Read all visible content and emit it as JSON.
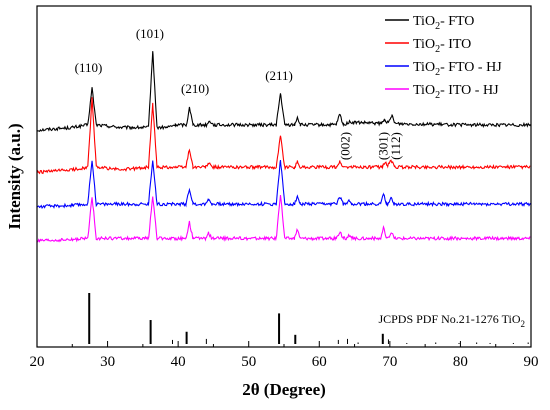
{
  "chart_data": {
    "type": "line",
    "xlabel": "2θ (Degree)",
    "ylabel": "Intensity (a.u.)",
    "xlim": [
      20,
      90
    ],
    "xticks": [
      20,
      30,
      40,
      50,
      60,
      70,
      80,
      90
    ],
    "yticks_shown": false,
    "grid": false,
    "legend_position": "top-right",
    "series": [
      {
        "name": "TiO2- FTO",
        "color": "#000000",
        "baseline": 0.56,
        "x": [
          20,
          25,
          27.2,
          27.8,
          28.4,
          32,
          35.8,
          36.4,
          37.0,
          38.4,
          39.6,
          41.2,
          41.6,
          42.1,
          44.0,
          44.5,
          45.0,
          50,
          53.9,
          54.5,
          55.1,
          56.5,
          56.9,
          57.3,
          61,
          62.4,
          62.9,
          63.4,
          64.2,
          68.8,
          69.3,
          69.8,
          70.3,
          70.8,
          80,
          89.9
        ],
        "y": [
          0.56,
          0.57,
          0.58,
          0.72,
          0.58,
          0.57,
          0.57,
          0.86,
          0.57,
          0.57,
          0.58,
          0.58,
          0.65,
          0.58,
          0.58,
          0.595,
          0.58,
          0.58,
          0.58,
          0.7,
          0.58,
          0.58,
          0.61,
          0.58,
          0.58,
          0.58,
          0.62,
          0.58,
          0.59,
          0.585,
          0.6,
          0.585,
          0.615,
          0.585,
          0.58,
          0.58
        ]
      },
      {
        "name": "TiO2- ITO",
        "color": "#ff0000",
        "baseline": 0.4,
        "x": [
          20,
          25,
          27.2,
          27.8,
          28.4,
          32,
          35.8,
          36.4,
          37.0,
          41.1,
          41.6,
          42.1,
          43.9,
          44.3,
          44.8,
          50,
          53.9,
          54.5,
          55.1,
          56.5,
          56.9,
          57.3,
          62.4,
          62.9,
          63.4,
          68.9,
          69.3,
          69.7,
          70.2,
          70.7,
          80,
          89.9
        ],
        "y": [
          0.4,
          0.41,
          0.42,
          0.68,
          0.42,
          0.41,
          0.42,
          0.66,
          0.42,
          0.42,
          0.49,
          0.42,
          0.42,
          0.435,
          0.42,
          0.42,
          0.42,
          0.54,
          0.42,
          0.42,
          0.44,
          0.42,
          0.42,
          0.44,
          0.42,
          0.42,
          0.44,
          0.425,
          0.445,
          0.42,
          0.42,
          0.42
        ]
      },
      {
        "name": "TiO2- FTO - HJ",
        "color": "#0000ff",
        "baseline": 0.27,
        "x": [
          20,
          25,
          27.2,
          27.8,
          28.4,
          32,
          35.8,
          36.4,
          37.0,
          41.1,
          41.6,
          42.1,
          43.9,
          44.3,
          44.8,
          50,
          53.9,
          54.5,
          55.1,
          56.5,
          56.9,
          57.3,
          62.4,
          62.9,
          63.4,
          63.8,
          64.2,
          64.6,
          68.7,
          69.1,
          69.5,
          69.8,
          70.2,
          70.6,
          80,
          89.9
        ],
        "y": [
          0.27,
          0.275,
          0.28,
          0.45,
          0.28,
          0.28,
          0.28,
          0.45,
          0.28,
          0.28,
          0.34,
          0.28,
          0.28,
          0.3,
          0.28,
          0.28,
          0.28,
          0.45,
          0.28,
          0.28,
          0.31,
          0.28,
          0.28,
          0.31,
          0.28,
          0.28,
          0.3,
          0.28,
          0.28,
          0.32,
          0.28,
          0.28,
          0.305,
          0.28,
          0.28,
          0.28
        ]
      },
      {
        "name": "TiO2- ITO - HJ",
        "color": "#ff00ff",
        "baseline": 0.14,
        "x": [
          20,
          25,
          27.2,
          27.8,
          28.4,
          32,
          35.8,
          36.4,
          37.0,
          41.1,
          41.6,
          42.1,
          43.9,
          44.3,
          44.8,
          50,
          53.9,
          54.5,
          55.1,
          56.5,
          56.9,
          57.3,
          62.4,
          62.9,
          63.4,
          63.8,
          64.2,
          64.6,
          68.7,
          69.1,
          69.5,
          69.8,
          70.2,
          70.6,
          80,
          89.9
        ],
        "y": [
          0.14,
          0.145,
          0.15,
          0.31,
          0.15,
          0.15,
          0.15,
          0.31,
          0.15,
          0.15,
          0.21,
          0.15,
          0.15,
          0.17,
          0.15,
          0.15,
          0.15,
          0.32,
          0.15,
          0.15,
          0.185,
          0.15,
          0.15,
          0.175,
          0.15,
          0.15,
          0.16,
          0.15,
          0.15,
          0.19,
          0.15,
          0.15,
          0.175,
          0.15,
          0.15,
          0.15
        ]
      }
    ],
    "reference": {
      "label": "JCPDS PDF No.21-1276 TiO2",
      "label_main": "JCPDS PDF No.21-1276 TiO",
      "label_sub": "2",
      "lines": [
        {
          "x": 27.4,
          "h": 1.0
        },
        {
          "x": 36.1,
          "h": 0.47
        },
        {
          "x": 39.2,
          "h": 0.08
        },
        {
          "x": 41.2,
          "h": 0.24
        },
        {
          "x": 44.0,
          "h": 0.1
        },
        {
          "x": 54.3,
          "h": 0.6
        },
        {
          "x": 56.6,
          "h": 0.18
        },
        {
          "x": 62.7,
          "h": 0.08
        },
        {
          "x": 64.0,
          "h": 0.1
        },
        {
          "x": 65.5,
          "h": 0.03
        },
        {
          "x": 69.0,
          "h": 0.2
        },
        {
          "x": 69.8,
          "h": 0.09
        },
        {
          "x": 72.4,
          "h": 0.02
        },
        {
          "x": 76.5,
          "h": 0.03
        },
        {
          "x": 79.8,
          "h": 0.02
        },
        {
          "x": 82.3,
          "h": 0.03
        },
        {
          "x": 84.2,
          "h": 0.02
        },
        {
          "x": 87.5,
          "h": 0.02
        },
        {
          "x": 89.6,
          "h": 0.03
        }
      ]
    },
    "annotations": [
      {
        "text": "(110)",
        "x": 27.3,
        "y": 0.78,
        "rotate": false
      },
      {
        "text": "(101)",
        "x": 36.0,
        "y": 0.91,
        "rotate": false
      },
      {
        "text": "(210)",
        "x": 42.4,
        "y": 0.7,
        "rotate": false
      },
      {
        "text": "(211)",
        "x": 54.3,
        "y": 0.75,
        "rotate": false
      },
      {
        "text": "(002)",
        "x": 63.7,
        "y": 0.5,
        "rotate": true
      },
      {
        "text": "(301)",
        "x": 69.1,
        "y": 0.5,
        "rotate": true
      },
      {
        "text": "(112)",
        "x": 70.9,
        "y": 0.5,
        "rotate": true
      }
    ]
  }
}
